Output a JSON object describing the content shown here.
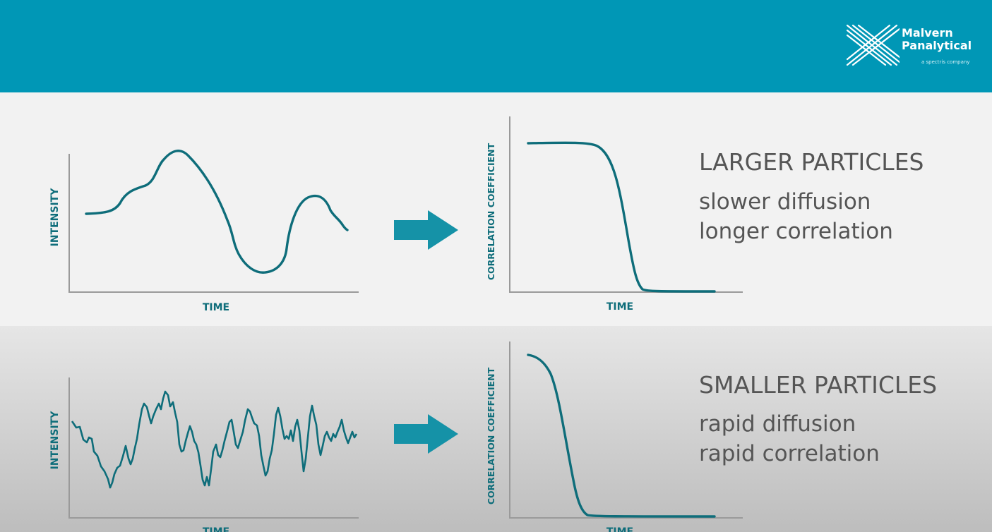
{
  "brand": {
    "name_line1": "Malvern",
    "name_line2": "Panalytical",
    "tagline": "a spectris company"
  },
  "colors": {
    "header": "#0097b6",
    "curve": "#0e6d7a",
    "arrow": "#1592a7",
    "axis": "#9a9a9a",
    "text": "#555555"
  },
  "labels": {
    "intensity": "INTENSITY",
    "time": "TIME",
    "correlation": "CORRELATION COEFFICIENT"
  },
  "rows": [
    {
      "heading": "LARGER PARTICLES",
      "line1": "slower diffusion",
      "line2": "longer correlation"
    },
    {
      "heading": "SMALLER PARTICLES",
      "line1": "rapid diffusion",
      "line2": "rapid correlation"
    }
  ]
}
